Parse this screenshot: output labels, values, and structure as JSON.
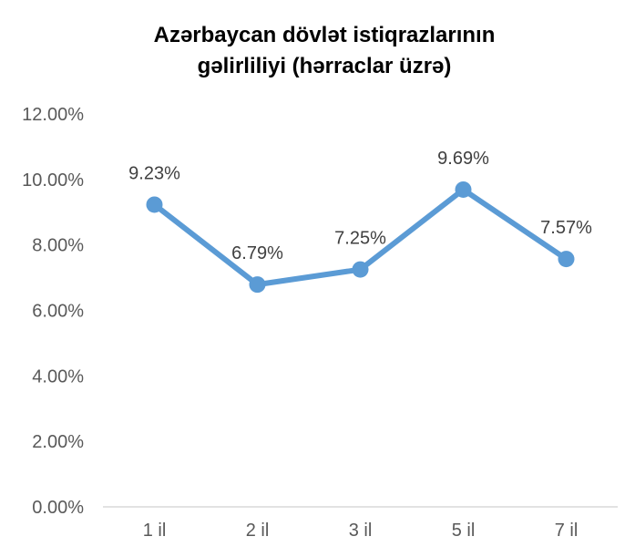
{
  "chart_data": {
    "type": "line",
    "title_lines": [
      "Azərbaycan dövlət istiqrazlarının",
      "gəlirliliyi (hərraclar üzrə)"
    ],
    "xlabel": "",
    "ylabel": "",
    "categories": [
      "1 il",
      "2 il",
      "3 il",
      "5 il",
      "7 il"
    ],
    "series": [
      {
        "values": [
          0.0923,
          0.0679,
          0.0725,
          0.0969,
          0.0757
        ],
        "color": "#5B9BD5",
        "data_labels": [
          "9.23%",
          "6.79%",
          "7.25%",
          "9.69%",
          "7.57%"
        ]
      }
    ],
    "ylim": [
      0,
      0.12
    ],
    "y_ticks": [
      0,
      0.02,
      0.04,
      0.06,
      0.08,
      0.1,
      0.12
    ],
    "y_tick_labels": [
      "0.00%",
      "2.00%",
      "4.00%",
      "6.00%",
      "8.00%",
      "10.00%",
      "12.00%"
    ],
    "grid": false,
    "legend": "none"
  }
}
